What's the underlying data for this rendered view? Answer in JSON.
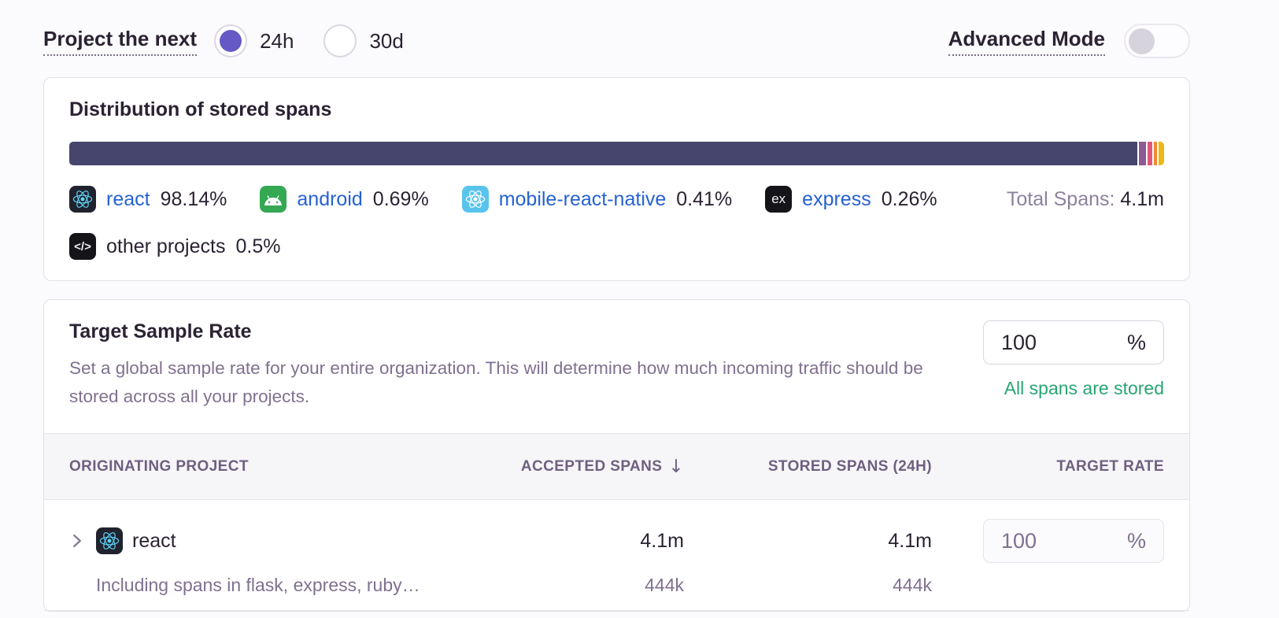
{
  "topbar": {
    "project_label": "Project the next",
    "options": [
      {
        "label": "24h",
        "selected": true
      },
      {
        "label": "30d",
        "selected": false
      }
    ],
    "advanced_label": "Advanced Mode",
    "advanced_on": false
  },
  "distribution": {
    "title": "Distribution of stored spans",
    "total_label": "Total Spans:",
    "total_value": "4.1m",
    "segments": [
      {
        "name": "react",
        "pct": 98.14,
        "color": "#46456e"
      },
      {
        "name": "android",
        "pct": 0.69,
        "color": "#8e5a94"
      },
      {
        "name": "mobile-react-native",
        "pct": 0.41,
        "color": "#e0567c"
      },
      {
        "name": "express",
        "pct": 0.26,
        "color": "#ef8a33"
      },
      {
        "name": "other projects",
        "pct": 0.5,
        "color": "#edb813"
      }
    ],
    "legend": [
      {
        "label": "react",
        "value": "98.14%"
      },
      {
        "label": "android",
        "value": "0.69%"
      },
      {
        "label": "mobile-react-native",
        "value": "0.41%"
      },
      {
        "label": "express",
        "value": "0.26%"
      },
      {
        "label": "other projects",
        "value": "0.5%"
      }
    ]
  },
  "icons": {
    "express_glyph": "ex",
    "code_glyph": "</>"
  },
  "sample_rate": {
    "title": "Target Sample Rate",
    "description": "Set a global sample rate for your entire organization. This will determine how much incoming traffic should be stored across all your projects.",
    "input_value": "100",
    "input_suffix": "%",
    "status": "All spans are stored"
  },
  "table": {
    "headers": {
      "project": "ORIGINATING PROJECT",
      "accepted": "ACCEPTED SPANS",
      "stored": "STORED SPANS (24H)",
      "rate": "TARGET RATE"
    },
    "sort_icon": "↓",
    "rows": [
      {
        "project": "react",
        "subtext": "Including spans in flask, express, ruby…",
        "accepted": "4.1m",
        "accepted_sub": "444k",
        "stored": "4.1m",
        "stored_sub": "444k",
        "rate": "100",
        "rate_suffix": "%"
      }
    ]
  }
}
